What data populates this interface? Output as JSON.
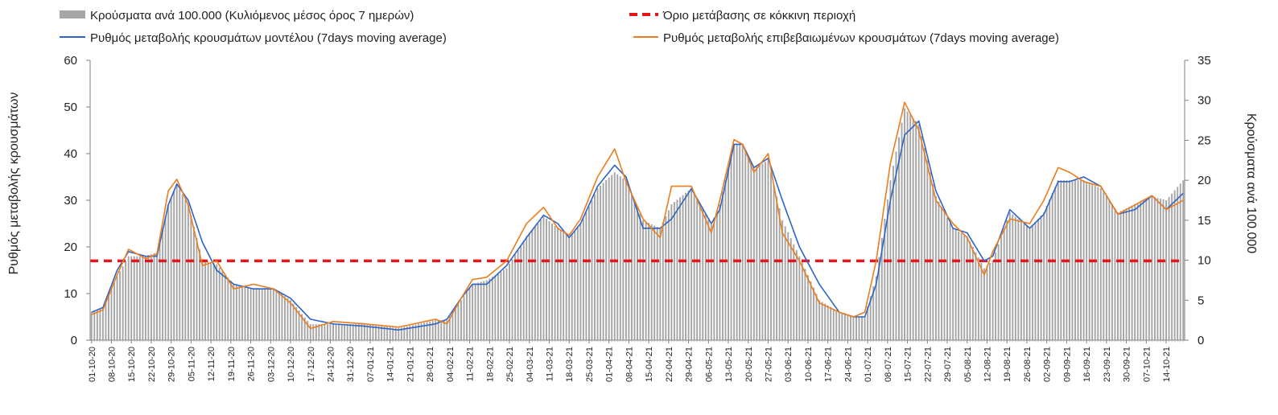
{
  "chart_data": {
    "type": "bar+line",
    "grid": false,
    "legend_placement": "top",
    "legend": {
      "bars": "Κρούσματα ανά 100.000 (Κυλιόμενος μέσος όρος 7 ημερών)",
      "threshold": "Όριο μετάβασης σε κόκκινη περιοχή",
      "model": "Ρυθμός μεταβολής κρουσμάτων μοντέλου (7days moving average)",
      "confirmed": "Ρυθμός μεταβολής επιβεβαιωμένων κρουσμάτων (7days moving average)"
    },
    "ylabel_left": "Ρυθμός μεταβολής κρουσμάτων",
    "ylabel_right": "Κρούσματα ανά 100.000",
    "y_left": {
      "min": 0,
      "max": 60,
      "ticks": [
        "0",
        "10",
        "20",
        "30",
        "40",
        "50",
        "60"
      ]
    },
    "y_right": {
      "min": 0,
      "max": 35,
      "ticks": [
        "0",
        "5",
        "10",
        "15",
        "20",
        "25",
        "30",
        "35"
      ]
    },
    "x_start": "2020-10-01",
    "x_end": "2021-10-20",
    "x_ticks": [
      "01-10-20",
      "08-10-20",
      "15-10-20",
      "22-10-20",
      "29-10-20",
      "05-11-20",
      "12-11-20",
      "19-11-20",
      "26-11-20",
      "03-12-20",
      "10-12-20",
      "17-12-20",
      "24-12-20",
      "31-12-20",
      "07-01-21",
      "14-01-21",
      "21-01-21",
      "28-01-21",
      "04-02-21",
      "11-02-21",
      "18-02-21",
      "25-02-21",
      "04-03-21",
      "11-03-21",
      "18-03-21",
      "25-03-21",
      "01-04-21",
      "08-04-21",
      "15-04-21",
      "22-04-21",
      "29-04-21",
      "06-05-21",
      "13-05-21",
      "20-05-21",
      "27-05-21",
      "03-06-21",
      "10-06-21",
      "17-06-21",
      "24-06-21",
      "01-07-21",
      "08-07-21",
      "15-07-21",
      "22-07-21",
      "29-07-21",
      "05-08-21",
      "12-08-21",
      "19-08-21",
      "26-08-21",
      "02-09-21",
      "09-09-21",
      "16-09-21",
      "23-09-21",
      "30-09-21",
      "07-10-21",
      "14-10-21"
    ],
    "threshold_value": 17,
    "model_series": [
      [
        "2020-10-01",
        6
      ],
      [
        "2020-10-05",
        7
      ],
      [
        "2020-10-10",
        15
      ],
      [
        "2020-10-14",
        19
      ],
      [
        "2020-10-20",
        18
      ],
      [
        "2020-10-24",
        18
      ],
      [
        "2020-10-28",
        29
      ],
      [
        "2020-10-31",
        33.5
      ],
      [
        "2020-11-04",
        30
      ],
      [
        "2020-11-09",
        21
      ],
      [
        "2020-11-14",
        15
      ],
      [
        "2020-11-20",
        12
      ],
      [
        "2020-11-27",
        11
      ],
      [
        "2020-12-04",
        11
      ],
      [
        "2020-12-10",
        9
      ],
      [
        "2020-12-17",
        4.5
      ],
      [
        "2020-12-25",
        3.5
      ],
      [
        "2021-01-05",
        3
      ],
      [
        "2021-01-17",
        2.2
      ],
      [
        "2021-01-30",
        3.5
      ],
      [
        "2021-02-03",
        4.5
      ],
      [
        "2021-02-08",
        9
      ],
      [
        "2021-02-12",
        12
      ],
      [
        "2021-02-17",
        12
      ],
      [
        "2021-02-24",
        16
      ],
      [
        "2021-03-03",
        22
      ],
      [
        "2021-03-09",
        26.8
      ],
      [
        "2021-03-14",
        25
      ],
      [
        "2021-03-18",
        22
      ],
      [
        "2021-03-22",
        25
      ],
      [
        "2021-03-28",
        33
      ],
      [
        "2021-04-03",
        37.5
      ],
      [
        "2021-04-07",
        35
      ],
      [
        "2021-04-13",
        24
      ],
      [
        "2021-04-19",
        24
      ],
      [
        "2021-04-23",
        26
      ],
      [
        "2021-04-30",
        32.5
      ],
      [
        "2021-05-07",
        25
      ],
      [
        "2021-05-10",
        28
      ],
      [
        "2021-05-15",
        42
      ],
      [
        "2021-05-18",
        42
      ],
      [
        "2021-05-22",
        37
      ],
      [
        "2021-05-27",
        39
      ],
      [
        "2021-06-01",
        30
      ],
      [
        "2021-06-07",
        20
      ],
      [
        "2021-06-14",
        12
      ],
      [
        "2021-06-21",
        6
      ],
      [
        "2021-06-26",
        5
      ],
      [
        "2021-06-30",
        5
      ],
      [
        "2021-07-04",
        12
      ],
      [
        "2021-07-09",
        30
      ],
      [
        "2021-07-14",
        44
      ],
      [
        "2021-07-19",
        47
      ],
      [
        "2021-07-25",
        32
      ],
      [
        "2021-07-31",
        24
      ],
      [
        "2021-08-05",
        23
      ],
      [
        "2021-08-11",
        17
      ],
      [
        "2021-08-14",
        18
      ],
      [
        "2021-08-20",
        28
      ],
      [
        "2021-08-27",
        24
      ],
      [
        "2021-09-01",
        27
      ],
      [
        "2021-09-06",
        34
      ],
      [
        "2021-09-10",
        34
      ],
      [
        "2021-09-15",
        35
      ],
      [
        "2021-09-21",
        33
      ],
      [
        "2021-09-27",
        27
      ],
      [
        "2021-10-03",
        28
      ],
      [
        "2021-10-09",
        31
      ],
      [
        "2021-10-14",
        28
      ],
      [
        "2021-10-20",
        31.5
      ]
    ],
    "confirmed_series": [
      [
        "2020-10-01",
        5.5
      ],
      [
        "2020-10-05",
        6.5
      ],
      [
        "2020-10-10",
        14
      ],
      [
        "2020-10-14",
        19.5
      ],
      [
        "2020-10-20",
        17.5
      ],
      [
        "2020-10-24",
        18.5
      ],
      [
        "2020-10-28",
        32
      ],
      [
        "2020-10-31",
        34.5
      ],
      [
        "2020-11-04",
        29
      ],
      [
        "2020-11-09",
        16
      ],
      [
        "2020-11-14",
        17
      ],
      [
        "2020-11-20",
        11
      ],
      [
        "2020-11-27",
        12
      ],
      [
        "2020-12-04",
        11
      ],
      [
        "2020-12-10",
        8
      ],
      [
        "2020-12-17",
        2.5
      ],
      [
        "2020-12-25",
        4
      ],
      [
        "2021-01-05",
        3.5
      ],
      [
        "2021-01-17",
        2.8
      ],
      [
        "2021-01-30",
        4.5
      ],
      [
        "2021-02-03",
        3.5
      ],
      [
        "2021-02-08",
        9
      ],
      [
        "2021-02-12",
        13
      ],
      [
        "2021-02-17",
        13.5
      ],
      [
        "2021-02-24",
        17
      ],
      [
        "2021-03-03",
        25
      ],
      [
        "2021-03-09",
        28.5
      ],
      [
        "2021-03-14",
        24
      ],
      [
        "2021-03-18",
        22.5
      ],
      [
        "2021-03-22",
        26
      ],
      [
        "2021-03-28",
        35
      ],
      [
        "2021-04-03",
        41
      ],
      [
        "2021-04-07",
        34
      ],
      [
        "2021-04-13",
        26
      ],
      [
        "2021-04-19",
        22
      ],
      [
        "2021-04-23",
        33
      ],
      [
        "2021-04-30",
        33
      ],
      [
        "2021-05-07",
        23
      ],
      [
        "2021-05-10",
        30
      ],
      [
        "2021-05-15",
        43
      ],
      [
        "2021-05-18",
        42
      ],
      [
        "2021-05-22",
        36
      ],
      [
        "2021-05-27",
        40
      ],
      [
        "2021-06-01",
        23
      ],
      [
        "2021-06-07",
        17
      ],
      [
        "2021-06-14",
        8
      ],
      [
        "2021-06-21",
        6
      ],
      [
        "2021-06-26",
        5
      ],
      [
        "2021-06-30",
        6
      ],
      [
        "2021-07-04",
        17
      ],
      [
        "2021-07-09",
        38
      ],
      [
        "2021-07-14",
        51
      ],
      [
        "2021-07-19",
        45
      ],
      [
        "2021-07-25",
        30
      ],
      [
        "2021-07-31",
        25
      ],
      [
        "2021-08-05",
        22
      ],
      [
        "2021-08-11",
        14
      ],
      [
        "2021-08-14",
        19
      ],
      [
        "2021-08-20",
        26
      ],
      [
        "2021-08-27",
        25
      ],
      [
        "2021-09-01",
        30
      ],
      [
        "2021-09-06",
        37
      ],
      [
        "2021-09-10",
        36
      ],
      [
        "2021-09-15",
        34
      ],
      [
        "2021-09-21",
        33
      ],
      [
        "2021-09-27",
        27
      ],
      [
        "2021-10-03",
        29
      ],
      [
        "2021-10-09",
        31
      ],
      [
        "2021-10-14",
        28
      ],
      [
        "2021-10-20",
        30
      ]
    ],
    "bar_series": [
      [
        "2020-10-01",
        3.5
      ],
      [
        "2020-10-05",
        4
      ],
      [
        "2020-10-10",
        8
      ],
      [
        "2020-10-14",
        10.5
      ],
      [
        "2020-10-20",
        10.5
      ],
      [
        "2020-10-24",
        11
      ],
      [
        "2020-10-28",
        17
      ],
      [
        "2020-10-31",
        19.5
      ],
      [
        "2020-11-04",
        17
      ],
      [
        "2020-11-09",
        10
      ],
      [
        "2020-11-14",
        9.5
      ],
      [
        "2020-11-20",
        7
      ],
      [
        "2020-11-27",
        6.5
      ],
      [
        "2020-12-04",
        6.5
      ],
      [
        "2020-12-10",
        5
      ],
      [
        "2020-12-17",
        2
      ],
      [
        "2020-12-25",
        2
      ],
      [
        "2021-01-05",
        2
      ],
      [
        "2021-01-17",
        1.5
      ],
      [
        "2021-01-30",
        2.5
      ],
      [
        "2021-02-03",
        2.5
      ],
      [
        "2021-02-08",
        5
      ],
      [
        "2021-02-12",
        7
      ],
      [
        "2021-02-17",
        7.5
      ],
      [
        "2021-02-24",
        9
      ],
      [
        "2021-03-03",
        13
      ],
      [
        "2021-03-09",
        15.5
      ],
      [
        "2021-03-14",
        14
      ],
      [
        "2021-03-18",
        13
      ],
      [
        "2021-03-22",
        14.5
      ],
      [
        "2021-03-28",
        19
      ],
      [
        "2021-04-03",
        21
      ],
      [
        "2021-04-07",
        20
      ],
      [
        "2021-04-13",
        15
      ],
      [
        "2021-04-19",
        14
      ],
      [
        "2021-04-23",
        17
      ],
      [
        "2021-04-30",
        19
      ],
      [
        "2021-05-07",
        14.5
      ],
      [
        "2021-05-10",
        17
      ],
      [
        "2021-05-15",
        24.5
      ],
      [
        "2021-05-18",
        24.5
      ],
      [
        "2021-05-22",
        21.5
      ],
      [
        "2021-05-27",
        22.5
      ],
      [
        "2021-06-01",
        15
      ],
      [
        "2021-06-07",
        10.5
      ],
      [
        "2021-06-14",
        5
      ],
      [
        "2021-06-21",
        3.5
      ],
      [
        "2021-06-26",
        3
      ],
      [
        "2021-06-30",
        3
      ],
      [
        "2021-07-04",
        8
      ],
      [
        "2021-07-09",
        20
      ],
      [
        "2021-07-14",
        29
      ],
      [
        "2021-07-19",
        27
      ],
      [
        "2021-07-25",
        18
      ],
      [
        "2021-07-31",
        14
      ],
      [
        "2021-08-05",
        13
      ],
      [
        "2021-08-11",
        9
      ],
      [
        "2021-08-14",
        10
      ],
      [
        "2021-08-20",
        16
      ],
      [
        "2021-08-27",
        14
      ],
      [
        "2021-09-01",
        16
      ],
      [
        "2021-09-06",
        20
      ],
      [
        "2021-09-10",
        20
      ],
      [
        "2021-09-15",
        20
      ],
      [
        "2021-09-21",
        19
      ],
      [
        "2021-09-27",
        16
      ],
      [
        "2021-10-03",
        17
      ],
      [
        "2021-10-09",
        18
      ],
      [
        "2021-10-14",
        17.5
      ],
      [
        "2021-10-20",
        20
      ]
    ],
    "colors": {
      "bars": "#a6a6a6",
      "threshold": "#e8141b",
      "model": "#2e64c6",
      "confirmed": "#ed7d1c",
      "axis": "#7f7f7f"
    }
  }
}
